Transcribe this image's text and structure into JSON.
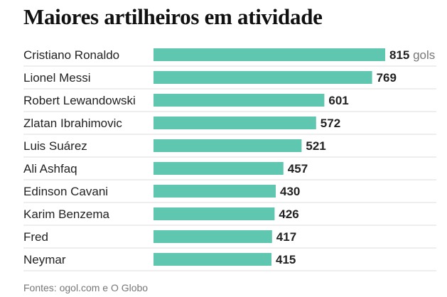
{
  "chart_data": {
    "type": "bar",
    "orientation": "horizontal",
    "title": "Maiores artilheiros em atividade",
    "unit": "gols",
    "categories": [
      "Cristiano Ronaldo",
      "Lionel Messi",
      "Robert Lewandowski",
      "Zlatan Ibrahimovic",
      "Luis Suárez",
      "Ali Ashfaq",
      "Edinson Cavani",
      "Karim Benzema",
      "Fred",
      "Neymar"
    ],
    "values": [
      815,
      769,
      601,
      572,
      521,
      457,
      430,
      426,
      417,
      415
    ],
    "xlim": [
      0,
      815
    ],
    "grid": false,
    "legend": "none"
  },
  "source": "Fontes: ogol.com e O Globo",
  "colors": {
    "bar": "#5fc7af",
    "label": "#222222",
    "value": "#222222",
    "unit": "#777777",
    "row_divider": "#dddddd"
  }
}
